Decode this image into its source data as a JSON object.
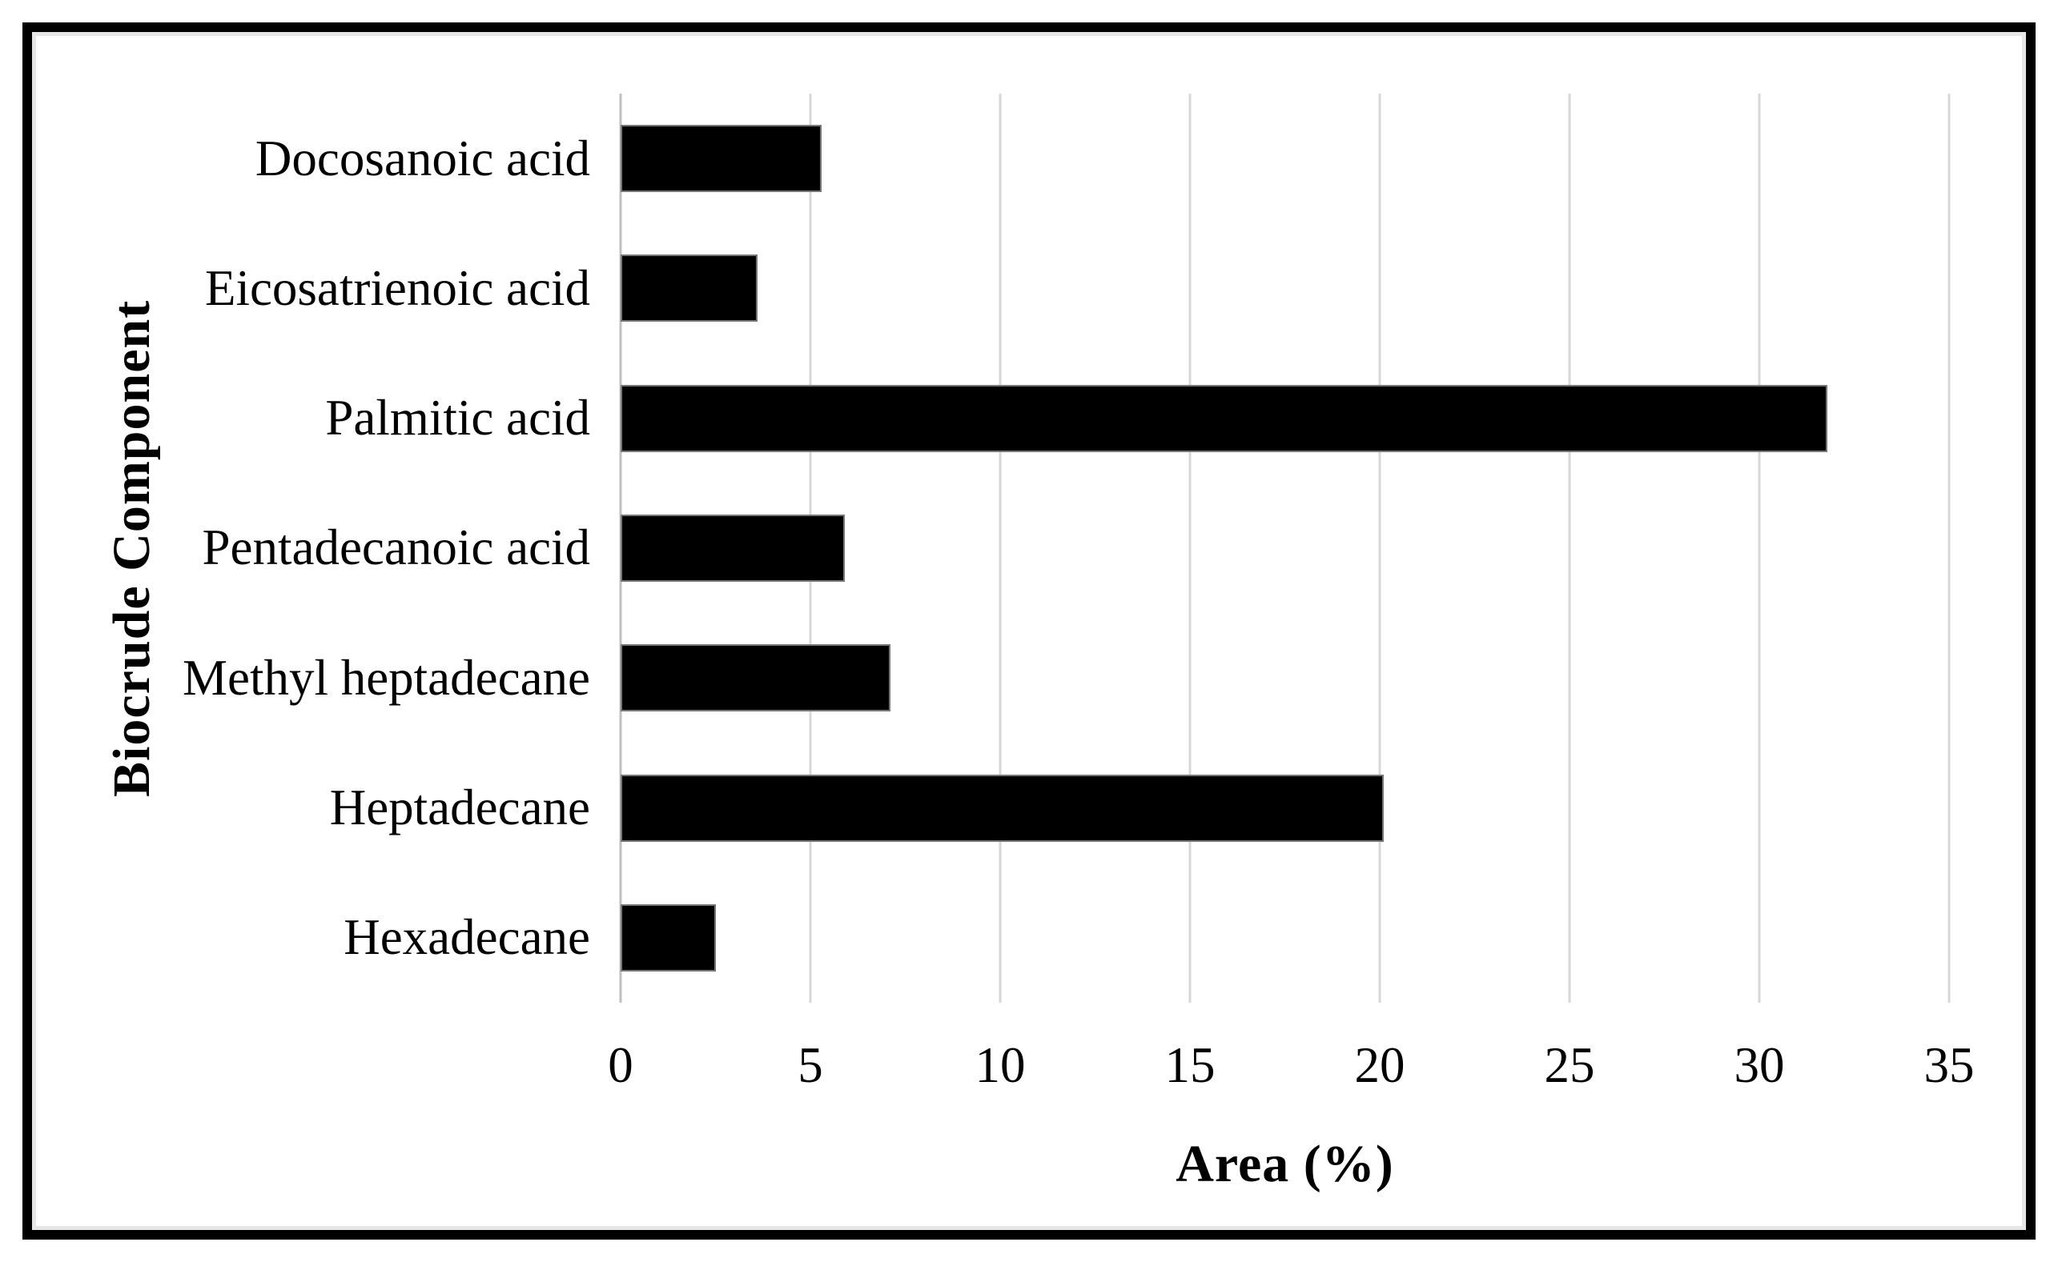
{
  "figure": {
    "background": "#ffffff",
    "frame_border_color": "#000000",
    "frame_inner_line_color": "#e6e6e6"
  },
  "chart_data": {
    "type": "bar",
    "orientation": "horizontal",
    "title": "",
    "xlabel": "Area (%)",
    "ylabel": "Biocrude Component",
    "categories": [
      "Docosanoic acid",
      "Eicosatrienoic acid",
      "Palmitic acid",
      "Pentadecanoic acid",
      "Methyl heptadecane",
      "Heptadecane",
      "Hexadecane"
    ],
    "values": [
      5.3,
      3.6,
      31.8,
      5.9,
      7.1,
      20.1,
      2.5
    ],
    "xlim": [
      0,
      35
    ],
    "xticks": [
      0,
      5,
      10,
      15,
      20,
      25,
      30,
      35
    ],
    "grid": true,
    "legend": false,
    "bar_color": "#000000",
    "bar_border_color": "#767676",
    "gridline_color": "#d7d7d7",
    "axis_line_color": "#bfbfbf"
  }
}
